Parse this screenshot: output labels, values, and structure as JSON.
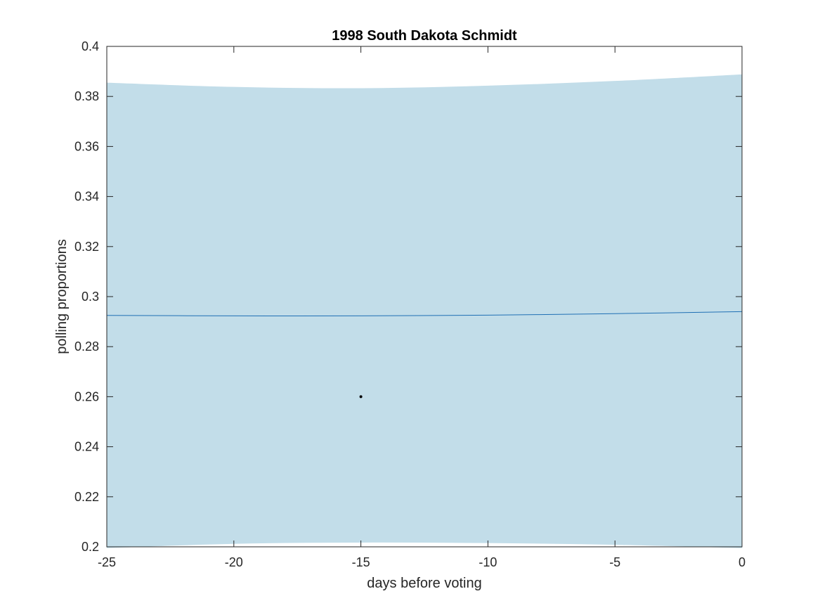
{
  "chart_data": {
    "type": "line",
    "title": "1998 South Dakota Schmidt",
    "xlabel": "days before voting",
    "ylabel": "polling proportions",
    "xlim": [
      -25,
      0
    ],
    "ylim": [
      0.2,
      0.4
    ],
    "x_ticks": [
      -25,
      -20,
      -15,
      -10,
      -5,
      0
    ],
    "x_tick_labels": [
      "-25",
      "-20",
      "-15",
      "-10",
      "-5",
      "0"
    ],
    "y_ticks": [
      0.2,
      0.22,
      0.24,
      0.26,
      0.28,
      0.3,
      0.32,
      0.34,
      0.36,
      0.38,
      0.4
    ],
    "y_tick_labels": [
      "0.2",
      "0.22",
      "0.24",
      "0.26",
      "0.28",
      "0.3",
      "0.32",
      "0.34",
      "0.36",
      "0.38",
      "0.4"
    ],
    "grid": false,
    "band": {
      "x": [
        -25,
        -20,
        -15,
        -10,
        -5,
        0
      ],
      "upper": [
        0.3855,
        0.3838,
        0.3833,
        0.3843,
        0.3862,
        0.3888
      ],
      "lower": [
        0.1995,
        0.2012,
        0.2017,
        0.2015,
        0.2008,
        0.1995
      ],
      "color": "#c2dde9"
    },
    "series": [
      {
        "x": [
          -25,
          -20,
          -15,
          -10,
          -5,
          0
        ],
        "values": [
          0.2925,
          0.2923,
          0.2923,
          0.2926,
          0.2932,
          0.294
        ],
        "color": "#1f6fb4"
      }
    ],
    "points": [
      {
        "x": -15,
        "y": 0.26,
        "color": "#000000"
      }
    ]
  }
}
